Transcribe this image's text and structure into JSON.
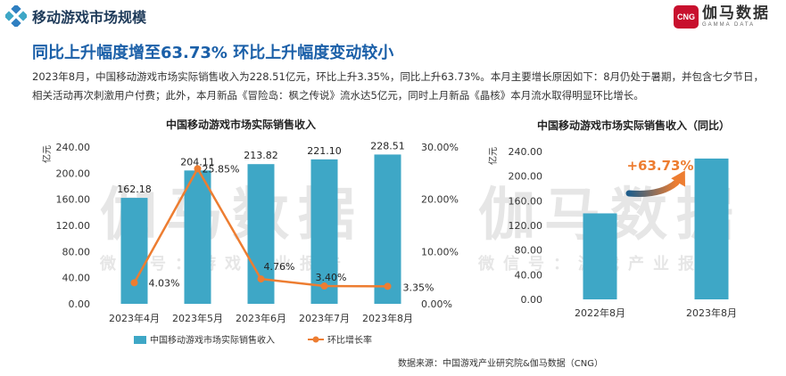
{
  "header": {
    "section_title": "移动游戏市场规模",
    "brand_logo": "CNG",
    "brand_name": "伽马数据",
    "brand_sub": "GAMMA DATA"
  },
  "headline": "同比上升幅度增至63.73% 环比上升幅度变动较小",
  "description": "2023年8月，中国移动游戏市场实际销售收入为228.51亿元，环比上升3.35%，同比上升63.73%。本月主要增长原因如下：8月仍处于暑期，并包含七夕节日，相关活动再次刺激用户付费；此外，本月新品《冒险岛：枫之传说》流水达5亿元，同时上月新品《晶核》本月流水取得明显环比增长。",
  "watermark": {
    "main": "伽马数据",
    "sub": "微信号：游戏产业报告"
  },
  "source": "数据来源：中国游戏产业研究院&伽马数据（CNG）",
  "colors": {
    "bar": "#3ea7c6",
    "line": "#ed7d31",
    "headline": "#1a5fa8",
    "brand": "#c8102e"
  },
  "chart_data": [
    {
      "type": "bar",
      "title": "中国移动游戏市场实际销售收入",
      "ylabel": "亿元",
      "categories": [
        "2023年4月",
        "2023年5月",
        "2023年6月",
        "2023年7月",
        "2023年8月"
      ],
      "ylim": [
        0,
        240
      ],
      "yticks": [
        "0.00",
        "40.00",
        "80.00",
        "120.00",
        "160.00",
        "200.00",
        "240.00"
      ],
      "y2lim": [
        0,
        30
      ],
      "y2ticks": [
        "0.00%",
        "10.00%",
        "20.00%",
        "30.00%"
      ],
      "series": [
        {
          "name": "中国移动游戏市场实际销售收入",
          "type": "bar",
          "axis": "left",
          "values": [
            162.18,
            204.11,
            213.82,
            221.1,
            228.51
          ],
          "labels": [
            "162.18",
            "204.11",
            "213.82",
            "221.10",
            "228.51"
          ]
        },
        {
          "name": "环比增长率",
          "type": "line",
          "axis": "right",
          "values": [
            4.03,
            25.85,
            4.76,
            3.4,
            3.35
          ],
          "labels": [
            "4.03%",
            "25.85%",
            "4.76%",
            "3.40%",
            "3.35%"
          ]
        }
      ],
      "legend": "bottom"
    },
    {
      "type": "bar",
      "title": "中国移动游戏市场实际销售收入（同比）",
      "ylabel": "亿元",
      "categories": [
        "2022年8月",
        "2023年8月"
      ],
      "ylim": [
        0,
        240
      ],
      "yticks": [
        "0.00",
        "40.00",
        "80.00",
        "120.00",
        "160.00",
        "200.00",
        "240.00"
      ],
      "series": [
        {
          "name": "中国移动游戏市场实际销售收入",
          "values": [
            139.56,
            228.51
          ]
        }
      ],
      "annotation": "+63.73%"
    }
  ]
}
